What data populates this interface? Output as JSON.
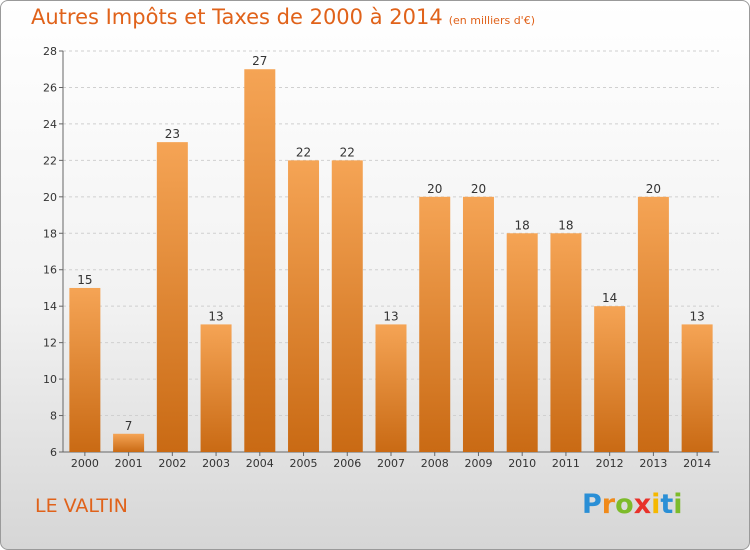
{
  "title": "Autres Impôts et Taxes de 2000 à 2014",
  "unit_note": "(en milliers d'€)",
  "place": "LE VALTIN",
  "logo": {
    "text": "Proxiti",
    "letters": [
      "P",
      "r",
      "o",
      "x",
      "i",
      "t",
      "i"
    ],
    "colors": [
      "#2a8fd6",
      "#f08a1a",
      "#7dbb2a",
      "#e8312a",
      "#f5b800",
      "#2a8fd6",
      "#7dbb2a"
    ]
  },
  "colors": {
    "accent": "#e0621a",
    "bar_top": "#f5a455",
    "bar_bottom": "#c96a14",
    "grid": "#d0d0d0"
  },
  "chart_data": {
    "type": "bar",
    "categories": [
      "2000",
      "2001",
      "2002",
      "2003",
      "2004",
      "2005",
      "2006",
      "2007",
      "2008",
      "2009",
      "2010",
      "2011",
      "2012",
      "2013",
      "2014"
    ],
    "values": [
      15,
      7,
      23,
      13,
      27,
      22,
      22,
      13,
      20,
      20,
      18,
      18,
      14,
      20,
      13
    ],
    "ylim": [
      6,
      28
    ],
    "yticks": [
      6,
      8,
      10,
      12,
      14,
      16,
      18,
      20,
      22,
      24,
      26,
      28
    ],
    "grid": true,
    "data_labels": true
  }
}
